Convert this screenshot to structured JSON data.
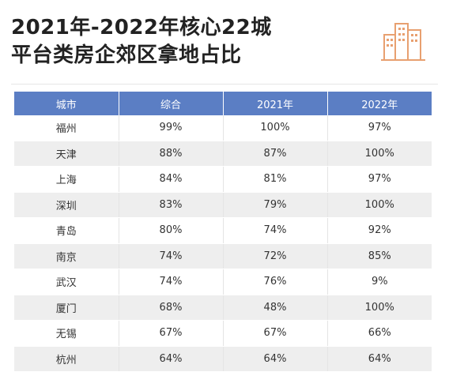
{
  "title": {
    "line1": "2021年-2022年核心22城",
    "line2": "平台类房企郊区拿地占比"
  },
  "logo_icon": "buildings-icon",
  "colors": {
    "header_bg": "#5b7ec4",
    "logo": "#e8a070",
    "stripe": "#eeeeee"
  },
  "table": {
    "headers": [
      "城市",
      "综合",
      "2021年",
      "2022年"
    ],
    "rows": [
      [
        "福州",
        "99%",
        "100%",
        "97%"
      ],
      [
        "天津",
        "88%",
        "87%",
        "100%"
      ],
      [
        "上海",
        "84%",
        "81%",
        "97%"
      ],
      [
        "深圳",
        "83%",
        "79%",
        "100%"
      ],
      [
        "青岛",
        "80%",
        "74%",
        "92%"
      ],
      [
        "南京",
        "74%",
        "72%",
        "85%"
      ],
      [
        "武汉",
        "74%",
        "76%",
        "9%"
      ],
      [
        "厦门",
        "68%",
        "48%",
        "100%"
      ],
      [
        "无锡",
        "67%",
        "67%",
        "66%"
      ],
      [
        "杭州",
        "64%",
        "64%",
        "64%"
      ]
    ]
  }
}
